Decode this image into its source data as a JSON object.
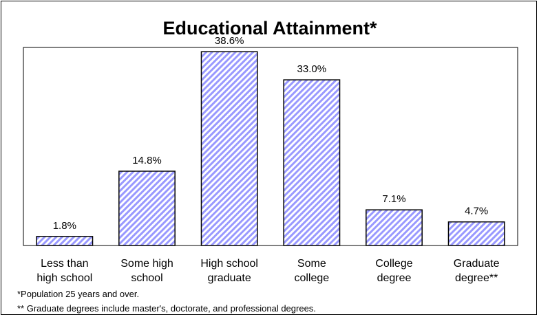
{
  "chart_data": {
    "type": "bar",
    "title": "Educational Attainment*",
    "categories": [
      [
        "Less than",
        "high school"
      ],
      [
        "Some high",
        "school"
      ],
      [
        "High school",
        "graduate"
      ],
      [
        "Some",
        "college"
      ],
      [
        "College",
        "degree"
      ],
      [
        "Graduate",
        "degree**"
      ]
    ],
    "values": [
      1.8,
      14.8,
      38.6,
      33.0,
      7.1,
      4.7
    ],
    "value_labels": [
      "1.8%",
      "14.8%",
      "38.6%",
      "33.0%",
      "7.1%",
      "4.7%"
    ],
    "ylim": [
      0,
      40
    ],
    "grid": false,
    "bar_fill": "#9999ff",
    "bar_hatch": "diagonal",
    "footnotes": [
      "*Population 25 years and over.",
      "** Graduate degrees include master's, doctorate, and professional degrees."
    ]
  }
}
